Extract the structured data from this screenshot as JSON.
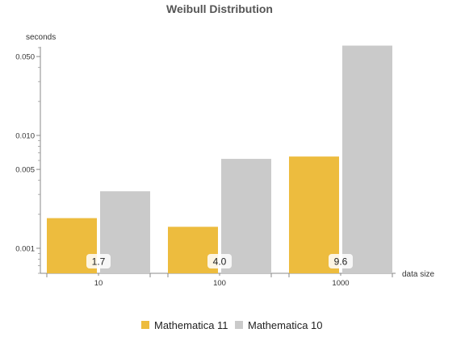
{
  "chart_data": {
    "type": "bar",
    "title": "Weibull Distribution",
    "xlabel": "data size",
    "ylabel": "seconds",
    "yscale": "log",
    "ylim": [
      0.0006,
      0.1
    ],
    "categories": [
      "10",
      "100",
      "1000"
    ],
    "series": [
      {
        "name": "Mathematica 11",
        "color": "#EDBC3E",
        "values": [
          0.00185,
          0.00155,
          0.0065
        ]
      },
      {
        "name": "Mathematica 10",
        "color": "#CACACA",
        "values": [
          0.0032,
          0.0062,
          0.0625
        ]
      }
    ],
    "data_labels": [
      "1.7",
      "4.0",
      "9.6"
    ],
    "major_ticks": [
      {
        "value": 0.001,
        "label": "0.001"
      },
      {
        "value": 0.005,
        "label": "0.005"
      },
      {
        "value": 0.01,
        "label": "0.010"
      },
      {
        "value": 0.05,
        "label": "0.050"
      }
    ],
    "minor_ticks": [
      0.0006,
      0.0007,
      0.0008,
      0.0009,
      0.002,
      0.003,
      0.004,
      0.006,
      0.007,
      0.008,
      0.009,
      0.02,
      0.03,
      0.04,
      0.06,
      0.07,
      0.08,
      0.09
    ],
    "grid": false,
    "legend_position": "bottom"
  }
}
